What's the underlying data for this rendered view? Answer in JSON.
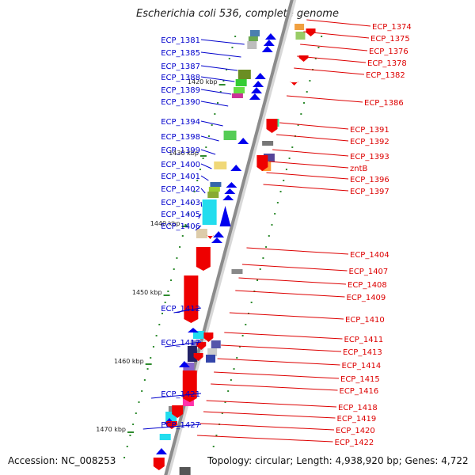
{
  "title": "Escherichia coli 536, complete genome",
  "accession": "Accession: NC_008253",
  "topology": "Topology: circular; Length: 4,938,920 bp; Genes: 4,722",
  "kbp_labels": [
    "1420 kbp",
    "1430 kbp",
    "1440 kbp",
    "1450 kbp",
    "1460 kbp",
    "1470 kbp"
  ],
  "colors": {
    "forward_label": "#0000cc",
    "reverse_label": "#dd0000",
    "backbone": "#8c8c8c",
    "tick": "#2e8b2e"
  },
  "left_labels": [
    "ECP_1381",
    "ECP_1385",
    "ECP_1387",
    "ECP_1388",
    "ECP_1389",
    "ECP_1390",
    "ECP_1394",
    "ECP_1398",
    "ECP_1399",
    "ECP_1400",
    "ECP_1401",
    "ECP_1402",
    "ECP_1403",
    "ECP_1405",
    "ECP_1406",
    "ECP_1412",
    "ECP_1417",
    "ECP_1421",
    "ECP_1427"
  ],
  "right_labels": [
    "ECP_1374",
    "ECP_1375",
    "ECP_1376",
    "ECP_1378",
    "ECP_1382",
    "ECP_1386",
    "ECP_1391",
    "ECP_1392",
    "ECP_1393",
    "zntB",
    "ECP_1396",
    "ECP_1397",
    "ECP_1404",
    "ECP_1407",
    "ECP_1408",
    "ECP_1409",
    "ECP_1410",
    "ECP_1411",
    "ECP_1413",
    "ECP_1414",
    "ECP_1415",
    "ECP_1416",
    "ECP_1418",
    "ECP_1419",
    "ECP_1420",
    "ECP_1422"
  ]
}
